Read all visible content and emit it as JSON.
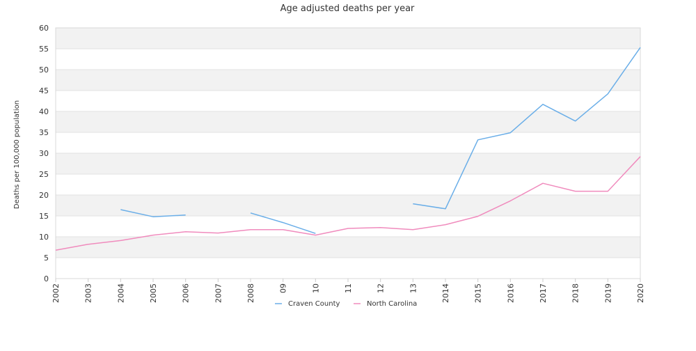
{
  "chart_data": {
    "type": "line",
    "title": "Age adjusted deaths per year",
    "ylabel": "Deaths per 100,000 population",
    "xlabel": "",
    "categories": [
      "2002",
      "2003",
      "2004",
      "2005",
      "2006",
      "2007",
      "2008",
      "09",
      "10",
      "11",
      "12",
      "13",
      "2014",
      "2015",
      "2016",
      "2017",
      "2018",
      "2019",
      "2020"
    ],
    "ylim": [
      0,
      60
    ],
    "yticks": [
      0,
      5,
      10,
      15,
      20,
      25,
      30,
      35,
      40,
      45,
      50,
      55,
      60
    ],
    "grid": "horizontal alternating bands",
    "legend_position": "bottom-center",
    "series": [
      {
        "name": "Craven County",
        "color": "#6aaee8",
        "values": [
          null,
          null,
          16.5,
          14.8,
          15.2,
          null,
          15.7,
          13.4,
          10.8,
          null,
          null,
          17.9,
          16.7,
          33.2,
          34.9,
          41.7,
          37.7,
          44.2,
          55.3
        ]
      },
      {
        "name": "North Carolina",
        "color": "#f08bbd",
        "values": [
          6.8,
          8.2,
          9.1,
          10.4,
          11.2,
          10.9,
          11.7,
          11.7,
          10.4,
          12.0,
          12.2,
          11.7,
          12.9,
          14.9,
          18.6,
          22.8,
          20.9,
          20.9,
          29.2
        ]
      }
    ]
  }
}
